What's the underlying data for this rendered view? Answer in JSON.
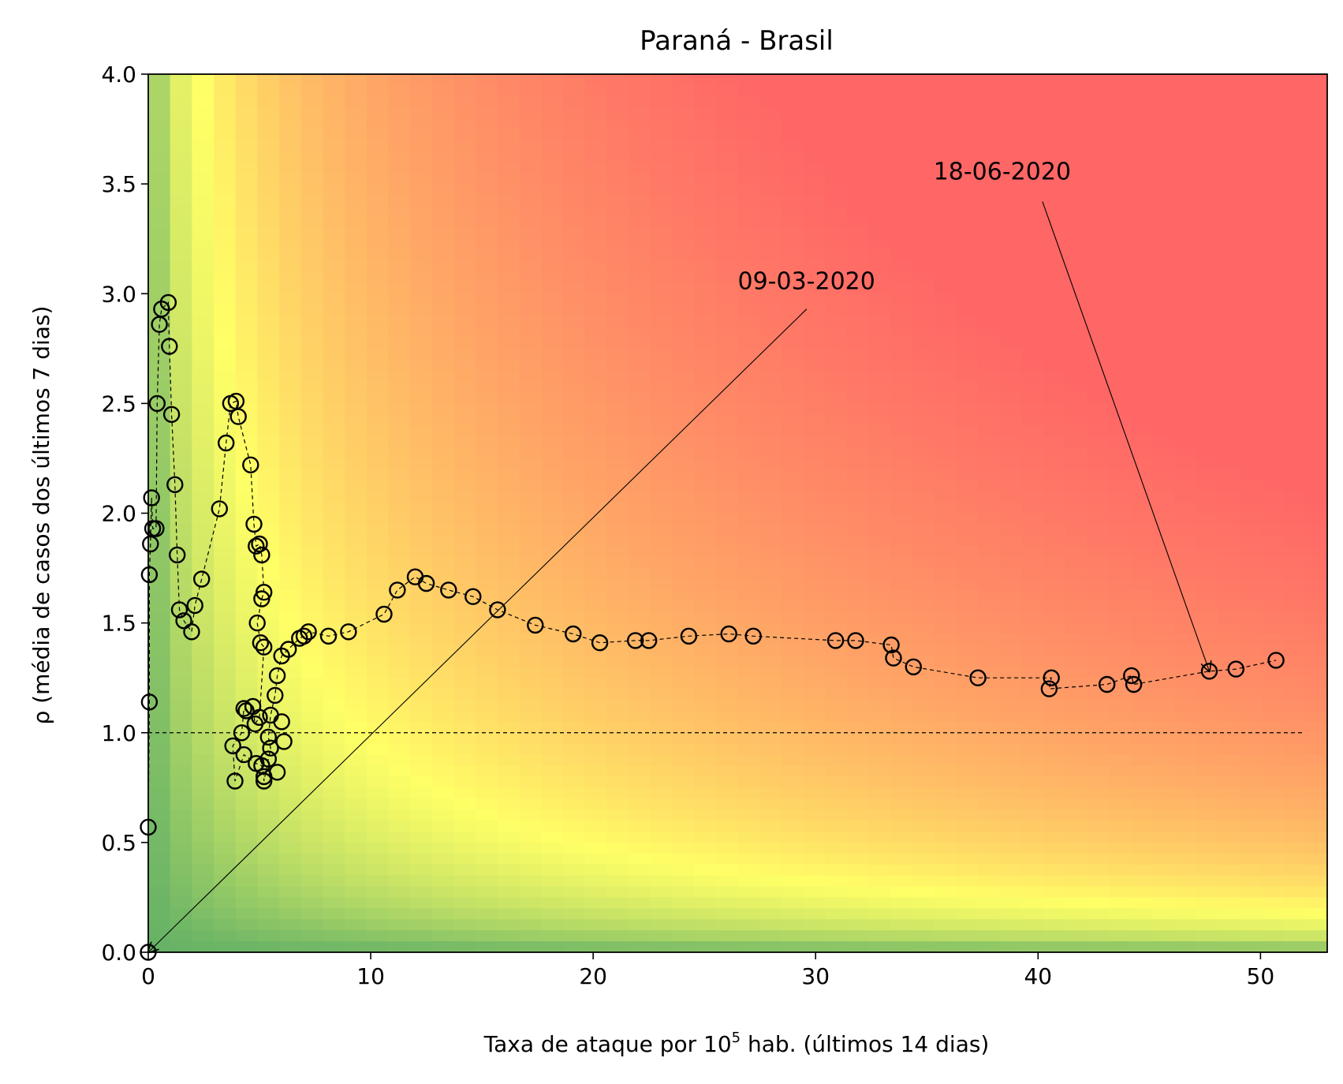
{
  "chart_data": {
    "type": "scatter",
    "title": "Paraná - Brasil",
    "xlabel": "Taxa de ataque por 10^5 hab. (últimos 14 dias)",
    "xlabel_parts": {
      "before": "Taxa de ataque por 10",
      "sup": "5",
      "after": " hab. (últimos 14 dias)"
    },
    "ylabel": "ρ (média de casos dos últimos 7 dias)",
    "xlim": [
      0,
      53
    ],
    "ylim": [
      0,
      4.0
    ],
    "x_ticks": [
      0,
      10,
      20,
      30,
      40,
      50
    ],
    "x_tick_labels": [
      "0",
      "10",
      "20",
      "30",
      "40",
      "50"
    ],
    "y_ticks": [
      0,
      0.5,
      1.0,
      1.5,
      2.0,
      2.5,
      3.0,
      3.5,
      4.0
    ],
    "y_tick_labels": [
      "0.0",
      "0.5",
      "1.0",
      "1.5",
      "2.0",
      "2.5",
      "3.0",
      "3.5",
      "4.0"
    ],
    "grid": false,
    "background": "risk-colormap (green → yellow → red), risk = attack rate × ρ",
    "colors": {
      "low": "#66b266",
      "mid": "#ffff66",
      "high": "#ff6666",
      "line": "#000000"
    },
    "reference_line": {
      "y": 1.0,
      "x_range": [
        0,
        52
      ],
      "style": "dashed"
    },
    "series": [
      {
        "marker": "open-circle",
        "line": "dashed",
        "points": [
          [
            0.0,
            0.0
          ],
          [
            0.0,
            0.57
          ],
          [
            0.05,
            1.14
          ],
          [
            0.05,
            1.72
          ],
          [
            0.1,
            1.86
          ],
          [
            0.15,
            2.07
          ],
          [
            0.2,
            1.93
          ],
          [
            0.35,
            1.93
          ],
          [
            0.4,
            2.5
          ],
          [
            0.5,
            2.86
          ],
          [
            0.6,
            2.93
          ],
          [
            0.9,
            2.96
          ],
          [
            0.95,
            2.76
          ],
          [
            1.05,
            2.45
          ],
          [
            1.2,
            2.13
          ],
          [
            1.3,
            1.81
          ],
          [
            1.4,
            1.56
          ],
          [
            1.6,
            1.51
          ],
          [
            1.95,
            1.46
          ],
          [
            2.1,
            1.58
          ],
          [
            2.4,
            1.7
          ],
          [
            3.2,
            2.02
          ],
          [
            3.5,
            2.32
          ],
          [
            3.7,
            2.5
          ],
          [
            3.95,
            2.51
          ],
          [
            4.05,
            2.44
          ],
          [
            4.6,
            2.22
          ],
          [
            4.75,
            1.95
          ],
          [
            4.85,
            1.85
          ],
          [
            5.0,
            1.86
          ],
          [
            5.1,
            1.81
          ],
          [
            5.2,
            1.64
          ],
          [
            5.1,
            1.61
          ],
          [
            4.9,
            1.5
          ],
          [
            5.05,
            1.41
          ],
          [
            5.2,
            1.39
          ],
          [
            5.0,
            1.07
          ],
          [
            4.8,
            1.04
          ],
          [
            4.7,
            1.12
          ],
          [
            4.4,
            1.1
          ],
          [
            4.3,
            1.11
          ],
          [
            4.2,
            1.0
          ],
          [
            3.8,
            0.94
          ],
          [
            3.9,
            0.78
          ],
          [
            4.3,
            0.9
          ],
          [
            4.85,
            0.86
          ],
          [
            5.1,
            0.85
          ],
          [
            5.2,
            0.8
          ],
          [
            5.2,
            0.78
          ],
          [
            5.4,
            0.88
          ],
          [
            5.5,
            0.93
          ],
          [
            5.4,
            0.98
          ],
          [
            5.5,
            1.08
          ],
          [
            5.7,
            1.17
          ],
          [
            5.8,
            1.26
          ],
          [
            6.0,
            1.35
          ],
          [
            6.3,
            1.38
          ],
          [
            6.8,
            1.43
          ],
          [
            7.0,
            1.44
          ],
          [
            7.2,
            1.46
          ],
          [
            8.1,
            1.44
          ],
          [
            9.0,
            1.46
          ],
          [
            10.6,
            1.54
          ],
          [
            11.2,
            1.65
          ],
          [
            12.0,
            1.71
          ],
          [
            12.5,
            1.68
          ],
          [
            13.5,
            1.65
          ],
          [
            14.6,
            1.62
          ],
          [
            15.7,
            1.56
          ],
          [
            17.4,
            1.49
          ],
          [
            19.1,
            1.45
          ],
          [
            20.3,
            1.41
          ],
          [
            21.9,
            1.42
          ],
          [
            22.5,
            1.42
          ],
          [
            24.3,
            1.44
          ],
          [
            26.1,
            1.45
          ],
          [
            27.2,
            1.44
          ],
          [
            30.9,
            1.42
          ],
          [
            31.8,
            1.42
          ],
          [
            33.4,
            1.4
          ],
          [
            33.5,
            1.34
          ],
          [
            34.4,
            1.3
          ],
          [
            37.3,
            1.25
          ],
          [
            40.6,
            1.25
          ],
          [
            40.5,
            1.2
          ],
          [
            43.1,
            1.22
          ],
          [
            44.2,
            1.26
          ],
          [
            44.3,
            1.22
          ],
          [
            47.7,
            1.28
          ],
          [
            48.9,
            1.29
          ],
          [
            50.7,
            1.33
          ]
        ],
        "stray_points": [
          [
            5.8,
            0.82
          ],
          [
            6.1,
            0.96
          ],
          [
            6.0,
            1.05
          ]
        ]
      }
    ],
    "annotations": [
      {
        "text": "09-03-2020",
        "point": [
          0.0,
          0.0
        ],
        "text_anchor_data": [
          26.5,
          3.02
        ],
        "line_start_data": [
          29.6,
          2.93
        ]
      },
      {
        "text": "18-06-2020",
        "point": [
          47.7,
          1.28
        ],
        "text_anchor_data": [
          35.3,
          3.52
        ],
        "line_start_data": [
          40.2,
          3.42
        ]
      }
    ]
  }
}
